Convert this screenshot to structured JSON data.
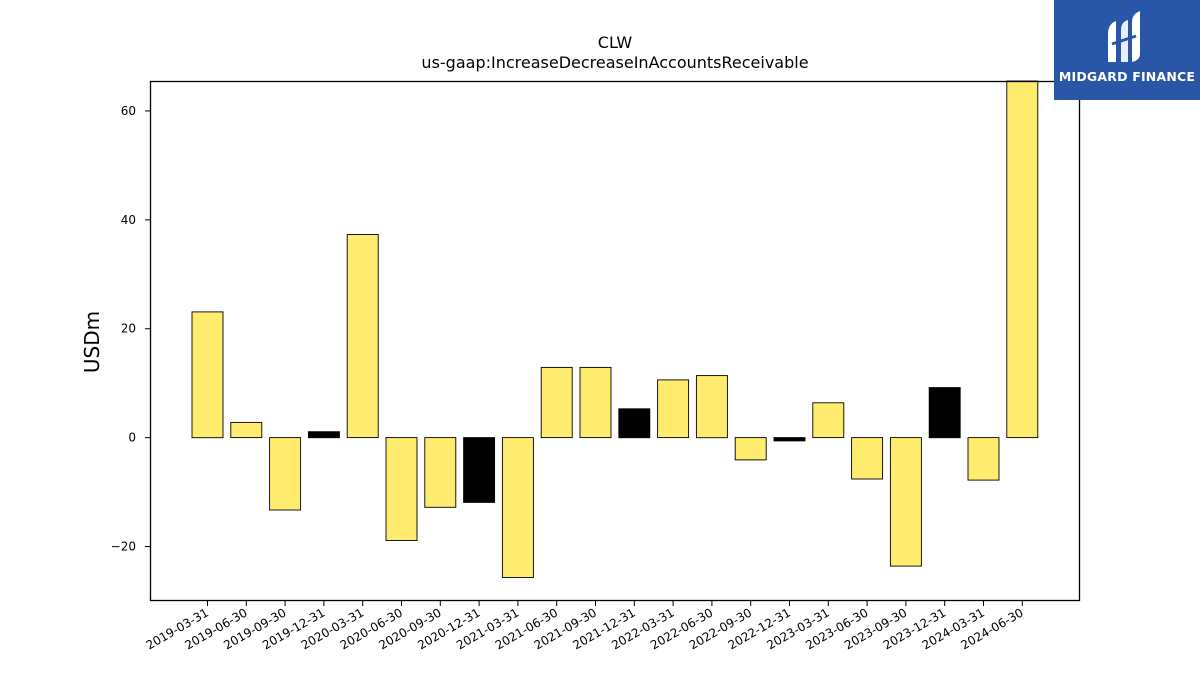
{
  "brand": {
    "name": "MIDGARD FINANCE",
    "bg_color": "#2a56a8"
  },
  "chart_data": {
    "type": "bar",
    "title": "CLW",
    "subtitle": "us-gaap:IncreaseDecreaseInAccountsReceivable",
    "xlabel": "",
    "ylabel": "USDm",
    "ylim": [
      -30,
      65.5
    ],
    "yticks": [
      -20,
      0,
      20,
      40,
      60
    ],
    "ytick_labels": [
      "−20",
      "0",
      "20",
      "40",
      "60"
    ],
    "grid": false,
    "categories": [
      "2019-03-31",
      "2019-06-30",
      "2019-09-30",
      "2019-12-31",
      "2020-03-31",
      "2020-06-30",
      "2020-09-30",
      "2020-12-31",
      "2021-03-31",
      "2021-06-30",
      "2021-09-30",
      "2021-12-31",
      "2022-03-31",
      "2022-06-30",
      "2022-09-30",
      "2022-12-31",
      "2023-03-31",
      "2023-06-30",
      "2023-09-30",
      "2023-12-31",
      "2024-03-31",
      "2024-06-30"
    ],
    "values": [
      23.1,
      2.8,
      -13.3,
      1.1,
      37.3,
      -18.9,
      -12.8,
      -11.9,
      -25.7,
      12.9,
      12.9,
      5.3,
      10.6,
      11.4,
      -4.1,
      -0.6,
      6.4,
      -7.6,
      -23.6,
      9.2,
      -7.8,
      65.5
    ],
    "colors": {
      "quarter": "#ffec6e",
      "year_end": "#000000",
      "edge": "#000000"
    }
  }
}
